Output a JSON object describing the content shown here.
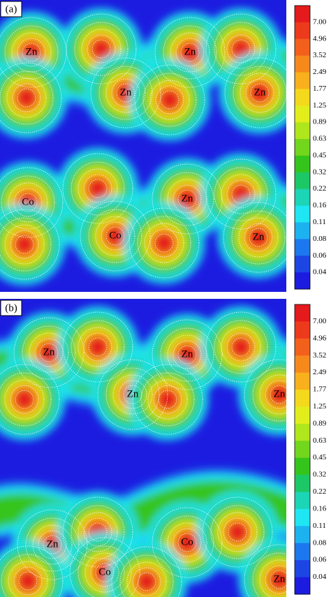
{
  "panels": [
    {
      "label": "(a)",
      "atoms": [
        "Zn",
        "Zn",
        "Zn",
        "Zn",
        "Co",
        "Zn",
        "Co",
        "Zn"
      ],
      "colorbar": [
        "7.00",
        "4.96",
        "3.52",
        "2.49",
        "1.77",
        "1.25",
        "0.89",
        "0.63",
        "0.45",
        "0.32",
        "0.22",
        "0.16",
        "0.11",
        "0.08",
        "0.06",
        "0.04"
      ]
    },
    {
      "label": "(b)",
      "atoms": [
        "Zn",
        "Zn",
        "Zn",
        "Zn",
        "Zn",
        "Co",
        "Co",
        "Zn"
      ],
      "colorbar": [
        "7.00",
        "4.96",
        "3.52",
        "2.49",
        "1.77",
        "1.25",
        "0.89",
        "0.63",
        "0.45",
        "0.32",
        "0.22",
        "0.16",
        "0.11",
        "0.08",
        "0.06",
        "0.04"
      ]
    }
  ]
}
